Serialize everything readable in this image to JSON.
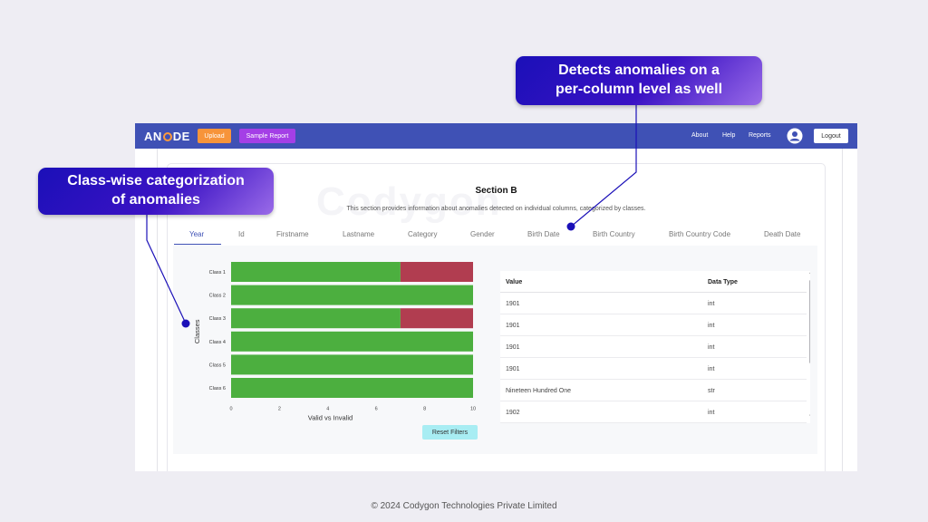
{
  "navbar": {
    "logo": "ANODE",
    "upload_label": "Upload",
    "sample_report_label": "Sample Report",
    "links": [
      "About",
      "Help",
      "Reports"
    ],
    "logout_label": "Logout"
  },
  "watermark": "Codygon",
  "section": {
    "title": "Section B",
    "description": "This section provides information about anomalies detected on individual columns, categorized by classes."
  },
  "tabs": [
    "Year",
    "Id",
    "Firstname",
    "Lastname",
    "Category",
    "Gender",
    "Birth Date",
    "Birth Country",
    "Birth Country Code",
    "Death Date"
  ],
  "active_tab": "Year",
  "chart_data": {
    "type": "bar",
    "orientation": "horizontal",
    "stacked": true,
    "categories": [
      "Class 1",
      "Class 2",
      "Class 3",
      "Class 4",
      "Class 5",
      "Class 6"
    ],
    "series": [
      {
        "values": [
          7,
          10,
          7,
          10,
          10,
          10
        ],
        "color": "#4caf3f"
      },
      {
        "values": [
          3,
          0,
          3,
          0,
          0,
          0
        ],
        "color": "#b13d50"
      }
    ],
    "xlabel": "Valid vs Invalid",
    "ylabel": "Classes",
    "xlim": [
      0,
      10
    ],
    "xticks": [
      "0",
      "2",
      "4",
      "6",
      "8",
      "10"
    ]
  },
  "reset_filters_label": "Reset Filters",
  "table": {
    "headers": [
      "Value",
      "Data Type"
    ],
    "rows": [
      [
        "1901",
        "int"
      ],
      [
        "1901",
        "int"
      ],
      [
        "1901",
        "int"
      ],
      [
        "1901",
        "int"
      ],
      [
        "Nineteen Hundred One",
        "str"
      ],
      [
        "1902",
        "int"
      ]
    ]
  },
  "callouts": {
    "top_line1": "Detects anomalies on a",
    "top_line2": "per-column level as well",
    "left_line1": "Class-wise categorization",
    "left_line2": "of anomalies"
  },
  "footer": "© 2024 Codygon Technologies Private Limited",
  "colors": {
    "navbar": "#3f51b5",
    "upload_button": "#f7943a",
    "sample_report_button": "#a43fe6",
    "reset_button": "#a8edf3",
    "callout": "#2a12c0"
  }
}
